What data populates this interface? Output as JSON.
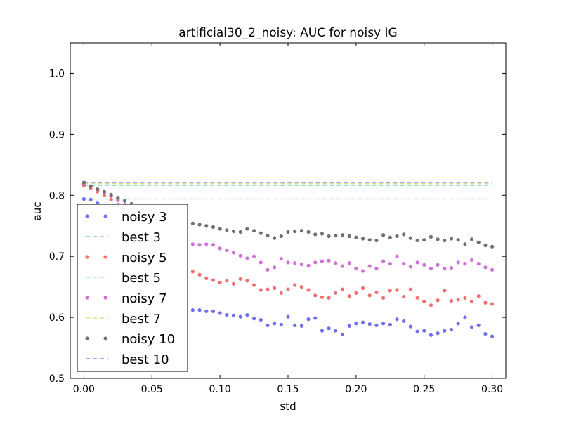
{
  "chart_data": {
    "type": "scatter",
    "title": "artificial30_2_noisy: AUC for noisy IG",
    "xlabel": "std",
    "ylabel": "auc",
    "xlim": [
      -0.01,
      0.31
    ],
    "ylim": [
      0.5,
      1.05
    ],
    "x_ticks": [
      0.0,
      0.05,
      0.1,
      0.15,
      0.2,
      0.25,
      0.3
    ],
    "x_tick_labels": [
      "0.00",
      "0.05",
      "0.10",
      "0.15",
      "0.20",
      "0.25",
      "0.30"
    ],
    "y_ticks": [
      0.5,
      0.6,
      0.7,
      0.8,
      0.9,
      1.0
    ],
    "y_tick_labels": [
      "0.5",
      "0.6",
      "0.7",
      "0.8",
      "0.9",
      "1.0"
    ],
    "grid": false,
    "legend_position": "lower-left",
    "legend": [
      {
        "label": "noisy 3",
        "kind": "dots",
        "color": "#6f6ff0"
      },
      {
        "label": "best 3",
        "kind": "dashed",
        "color": "#7ccc7c"
      },
      {
        "label": "noisy 5",
        "kind": "dots",
        "color": "#f07070"
      },
      {
        "label": "best 5",
        "kind": "dashed",
        "color": "#8fe0e0"
      },
      {
        "label": "noisy 7",
        "kind": "dots",
        "color": "#d070d8"
      },
      {
        "label": "best 7",
        "kind": "dashed",
        "color": "#e0e070"
      },
      {
        "label": "noisy 10",
        "kind": "dots",
        "color": "#707070"
      },
      {
        "label": "best 10",
        "kind": "dashed",
        "color": "#7070f0"
      }
    ],
    "reference_lines": [
      {
        "name": "best 3",
        "y": 0.794,
        "color": "#7ccc7c"
      },
      {
        "name": "best 5",
        "y": 0.816,
        "color": "#8fe0e0"
      },
      {
        "name": "best 7",
        "y": 0.819,
        "color": "#e0e070"
      },
      {
        "name": "best 10",
        "y": 0.821,
        "color": "#7070f0"
      }
    ],
    "x": [
      0.0,
      0.005,
      0.01,
      0.015,
      0.02,
      0.025,
      0.03,
      0.035,
      0.04,
      0.045,
      0.05,
      0.055,
      0.06,
      0.065,
      0.07,
      0.075,
      0.08,
      0.085,
      0.09,
      0.095,
      0.1,
      0.105,
      0.11,
      0.115,
      0.12,
      0.125,
      0.13,
      0.135,
      0.14,
      0.145,
      0.15,
      0.155,
      0.16,
      0.165,
      0.17,
      0.175,
      0.18,
      0.185,
      0.19,
      0.195,
      0.2,
      0.205,
      0.21,
      0.215,
      0.22,
      0.225,
      0.23,
      0.235,
      0.24,
      0.245,
      0.25,
      0.255,
      0.26,
      0.265,
      0.27,
      0.275,
      0.28,
      0.285,
      0.29,
      0.295,
      0.3
    ],
    "series": [
      {
        "name": "noisy 3",
        "color": "#6f6ff0",
        "values": [
          0.794,
          0.793,
          0.787,
          0.781,
          0.775,
          0.769,
          0.762,
          0.754,
          0.745,
          0.734,
          0.724,
          0.712,
          0.7,
          0.684,
          0.66,
          0.636,
          0.612,
          0.612,
          0.61,
          0.61,
          0.607,
          0.604,
          0.603,
          0.601,
          0.604,
          0.598,
          0.596,
          0.587,
          0.59,
          0.588,
          0.601,
          0.587,
          0.586,
          0.597,
          0.599,
          0.578,
          0.582,
          0.578,
          0.572,
          0.586,
          0.59,
          0.592,
          0.589,
          0.587,
          0.59,
          0.588,
          0.597,
          0.594,
          0.585,
          0.577,
          0.578,
          0.571,
          0.574,
          0.578,
          0.58,
          0.59,
          0.6,
          0.584,
          0.587,
          0.573,
          0.569
        ]
      },
      {
        "name": "noisy 5",
        "color": "#f07070",
        "values": [
          0.816,
          0.812,
          0.806,
          0.8,
          0.793,
          0.785,
          0.777,
          0.768,
          0.758,
          0.748,
          0.737,
          0.726,
          0.715,
          0.704,
          0.693,
          0.684,
          0.675,
          0.67,
          0.664,
          0.661,
          0.657,
          0.66,
          0.655,
          0.663,
          0.66,
          0.653,
          0.645,
          0.646,
          0.648,
          0.64,
          0.646,
          0.653,
          0.65,
          0.645,
          0.636,
          0.633,
          0.632,
          0.64,
          0.646,
          0.635,
          0.64,
          0.648,
          0.636,
          0.641,
          0.632,
          0.644,
          0.645,
          0.634,
          0.646,
          0.632,
          0.626,
          0.62,
          0.628,
          0.644,
          0.627,
          0.629,
          0.632,
          0.626,
          0.635,
          0.624,
          0.622
        ]
      },
      {
        "name": "noisy 7",
        "color": "#d070d8",
        "values": [
          0.819,
          0.815,
          0.81,
          0.805,
          0.799,
          0.792,
          0.785,
          0.778,
          0.77,
          0.762,
          0.754,
          0.745,
          0.737,
          0.729,
          0.723,
          0.721,
          0.72,
          0.719,
          0.72,
          0.719,
          0.713,
          0.71,
          0.706,
          0.701,
          0.697,
          0.7,
          0.69,
          0.678,
          0.682,
          0.696,
          0.69,
          0.689,
          0.687,
          0.685,
          0.69,
          0.692,
          0.693,
          0.689,
          0.684,
          0.689,
          0.68,
          0.676,
          0.684,
          0.68,
          0.692,
          0.688,
          0.7,
          0.688,
          0.683,
          0.69,
          0.686,
          0.68,
          0.686,
          0.68,
          0.681,
          0.69,
          0.688,
          0.694,
          0.688,
          0.682,
          0.678
        ]
      },
      {
        "name": "noisy 10",
        "color": "#707070",
        "values": [
          0.821,
          0.815,
          0.81,
          0.806,
          0.801,
          0.796,
          0.791,
          0.786,
          0.781,
          0.776,
          0.772,
          0.767,
          0.763,
          0.76,
          0.757,
          0.756,
          0.754,
          0.752,
          0.75,
          0.748,
          0.745,
          0.743,
          0.741,
          0.74,
          0.745,
          0.742,
          0.738,
          0.734,
          0.73,
          0.733,
          0.74,
          0.741,
          0.742,
          0.74,
          0.736,
          0.737,
          0.733,
          0.734,
          0.735,
          0.733,
          0.731,
          0.729,
          0.727,
          0.726,
          0.735,
          0.731,
          0.733,
          0.736,
          0.73,
          0.726,
          0.727,
          0.732,
          0.728,
          0.726,
          0.729,
          0.727,
          0.72,
          0.728,
          0.723,
          0.718,
          0.716
        ]
      }
    ]
  }
}
